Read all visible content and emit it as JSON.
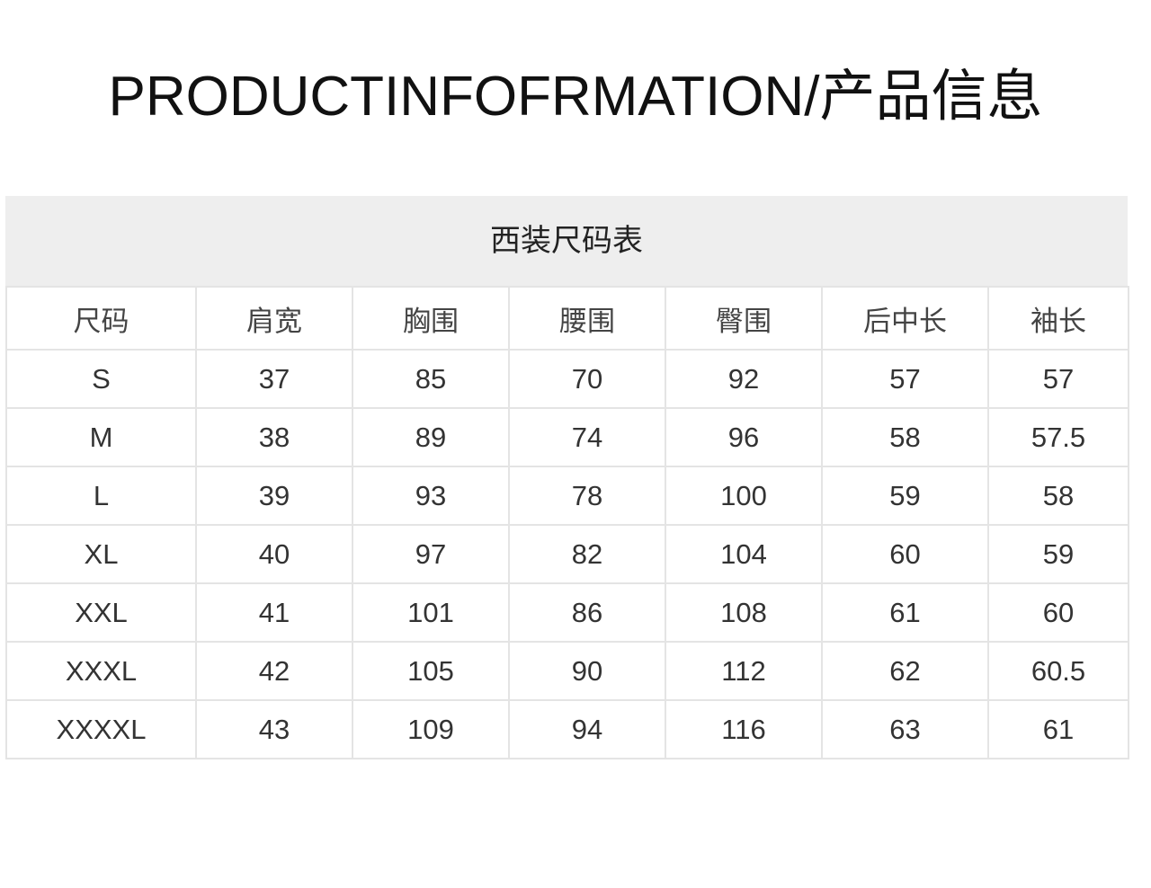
{
  "title": "PRODUCTINFOFRMATION/产品信息",
  "table": {
    "caption": "西装尺码表",
    "headers": [
      "尺码",
      "肩宽",
      "胸围",
      "腰围",
      "臀围",
      "后中长",
      "袖长"
    ],
    "rows": [
      [
        "S",
        "37",
        "85",
        "70",
        "92",
        "57",
        "57"
      ],
      [
        "M",
        "38",
        "89",
        "74",
        "96",
        "58",
        "57.5"
      ],
      [
        "L",
        "39",
        "93",
        "78",
        "100",
        "59",
        "58"
      ],
      [
        "XL",
        "40",
        "97",
        "82",
        "104",
        "60",
        "59"
      ],
      [
        "XXL",
        "41",
        "101",
        "86",
        "108",
        "61",
        "60"
      ],
      [
        "XXXL",
        "42",
        "105",
        "90",
        "112",
        "62",
        "60.5"
      ],
      [
        "XXXXL",
        "43",
        "109",
        "94",
        "116",
        "63",
        "61"
      ]
    ]
  }
}
